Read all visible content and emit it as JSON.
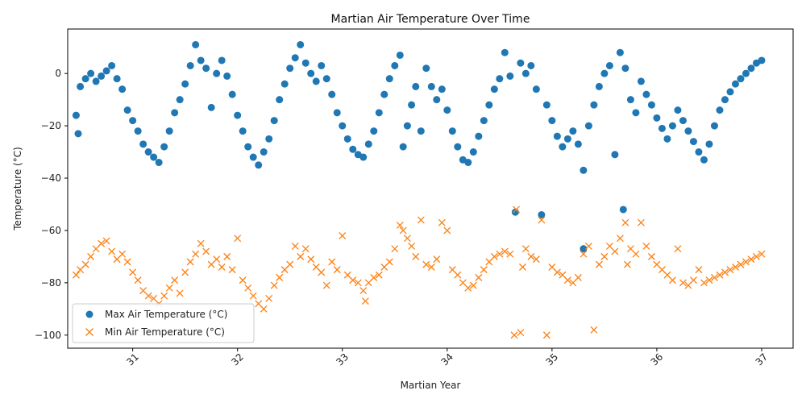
{
  "chart_data": {
    "type": "scatter",
    "title": "Martian Air Temperature Over Time",
    "xlabel": "Martian Year",
    "ylabel": "Temperature (°C)",
    "xlim": [
      30.38,
      37.3
    ],
    "ylim": [
      -105,
      17
    ],
    "xticks": [
      31,
      32,
      33,
      34,
      35,
      36,
      37
    ],
    "xtick_labels": [
      "31",
      "32",
      "33",
      "34",
      "35",
      "36",
      "37"
    ],
    "yticks": [
      -100,
      -80,
      -60,
      -40,
      -20,
      0
    ],
    "ytick_labels": [
      "−100",
      "−80",
      "−60",
      "−40",
      "−20",
      "0"
    ],
    "grid": false,
    "legend_position": "bottom-left",
    "colors": {
      "max": "#1f77b4",
      "min": "#ff7f0e"
    },
    "series": [
      {
        "name": "Max Air Temperature (°C)",
        "marker": "circle",
        "points": [
          [
            30.46,
            -16
          ],
          [
            30.48,
            -23
          ],
          [
            30.5,
            -5
          ],
          [
            30.55,
            -2
          ],
          [
            30.6,
            0
          ],
          [
            30.65,
            -3
          ],
          [
            30.7,
            -1
          ],
          [
            30.75,
            1
          ],
          [
            30.8,
            3
          ],
          [
            30.85,
            -2
          ],
          [
            30.9,
            -6
          ],
          [
            30.95,
            -14
          ],
          [
            31.0,
            -18
          ],
          [
            31.05,
            -22
          ],
          [
            31.1,
            -27
          ],
          [
            31.15,
            -30
          ],
          [
            31.2,
            -32
          ],
          [
            31.25,
            -34
          ],
          [
            31.3,
            -28
          ],
          [
            31.35,
            -22
          ],
          [
            31.4,
            -15
          ],
          [
            31.45,
            -10
          ],
          [
            31.5,
            -4
          ],
          [
            31.55,
            3
          ],
          [
            31.6,
            11
          ],
          [
            31.65,
            5
          ],
          [
            31.7,
            2
          ],
          [
            31.75,
            -13
          ],
          [
            31.8,
            0
          ],
          [
            31.85,
            5
          ],
          [
            31.9,
            -1
          ],
          [
            31.95,
            -8
          ],
          [
            32.0,
            -16
          ],
          [
            32.05,
            -22
          ],
          [
            32.1,
            -28
          ],
          [
            32.15,
            -32
          ],
          [
            32.2,
            -35
          ],
          [
            32.25,
            -30
          ],
          [
            32.3,
            -25
          ],
          [
            32.35,
            -18
          ],
          [
            32.4,
            -10
          ],
          [
            32.45,
            -4
          ],
          [
            32.5,
            2
          ],
          [
            32.55,
            6
          ],
          [
            32.6,
            11
          ],
          [
            32.65,
            4
          ],
          [
            32.7,
            0
          ],
          [
            32.75,
            -3
          ],
          [
            32.8,
            3
          ],
          [
            32.85,
            -2
          ],
          [
            32.9,
            -8
          ],
          [
            32.95,
            -15
          ],
          [
            33.0,
            -20
          ],
          [
            33.05,
            -25
          ],
          [
            33.1,
            -29
          ],
          [
            33.15,
            -31
          ],
          [
            33.2,
            -32
          ],
          [
            33.25,
            -27
          ],
          [
            33.3,
            -22
          ],
          [
            33.35,
            -15
          ],
          [
            33.4,
            -8
          ],
          [
            33.45,
            -2
          ],
          [
            33.5,
            3
          ],
          [
            33.55,
            7
          ],
          [
            33.58,
            -28
          ],
          [
            33.62,
            -20
          ],
          [
            33.66,
            -12
          ],
          [
            33.7,
            -5
          ],
          [
            33.75,
            -22
          ],
          [
            33.8,
            2
          ],
          [
            33.85,
            -5
          ],
          [
            33.9,
            -10
          ],
          [
            33.95,
            -6
          ],
          [
            34.0,
            -14
          ],
          [
            34.05,
            -22
          ],
          [
            34.1,
            -28
          ],
          [
            34.15,
            -33
          ],
          [
            34.2,
            -34
          ],
          [
            34.25,
            -30
          ],
          [
            34.3,
            -24
          ],
          [
            34.35,
            -18
          ],
          [
            34.4,
            -12
          ],
          [
            34.45,
            -6
          ],
          [
            34.5,
            -2
          ],
          [
            34.55,
            8
          ],
          [
            34.6,
            -1
          ],
          [
            34.65,
            -53
          ],
          [
            34.7,
            4
          ],
          [
            34.75,
            0
          ],
          [
            34.8,
            3
          ],
          [
            34.85,
            -6
          ],
          [
            34.9,
            -54
          ],
          [
            34.95,
            -12
          ],
          [
            35.0,
            -18
          ],
          [
            35.05,
            -24
          ],
          [
            35.1,
            -28
          ],
          [
            35.15,
            -25
          ],
          [
            35.2,
            -22
          ],
          [
            35.25,
            -27
          ],
          [
            35.3,
            -37
          ],
          [
            35.3,
            -67
          ],
          [
            35.35,
            -20
          ],
          [
            35.4,
            -12
          ],
          [
            35.45,
            -5
          ],
          [
            35.5,
            0
          ],
          [
            35.55,
            3
          ],
          [
            35.6,
            -31
          ],
          [
            35.65,
            8
          ],
          [
            35.68,
            -52
          ],
          [
            35.7,
            2
          ],
          [
            35.75,
            -10
          ],
          [
            35.8,
            -15
          ],
          [
            35.85,
            -3
          ],
          [
            35.9,
            -8
          ],
          [
            35.95,
            -12
          ],
          [
            36.0,
            -17
          ],
          [
            36.05,
            -21
          ],
          [
            36.1,
            -25
          ],
          [
            36.15,
            -20
          ],
          [
            36.2,
            -14
          ],
          [
            36.25,
            -18
          ],
          [
            36.3,
            -22
          ],
          [
            36.35,
            -26
          ],
          [
            36.4,
            -30
          ],
          [
            36.45,
            -33
          ],
          [
            36.5,
            -27
          ],
          [
            36.55,
            -20
          ],
          [
            36.6,
            -14
          ],
          [
            36.65,
            -10
          ],
          [
            36.7,
            -7
          ],
          [
            36.75,
            -4
          ],
          [
            36.8,
            -2
          ],
          [
            36.85,
            0
          ],
          [
            36.9,
            2
          ],
          [
            36.95,
            4
          ],
          [
            37.0,
            5
          ]
        ]
      },
      {
        "name": "Min Air Temperature (°C)",
        "marker": "x",
        "points": [
          [
            30.46,
            -77
          ],
          [
            30.5,
            -75
          ],
          [
            30.55,
            -73
          ],
          [
            30.6,
            -70
          ],
          [
            30.65,
            -67
          ],
          [
            30.7,
            -65
          ],
          [
            30.75,
            -64
          ],
          [
            30.8,
            -68
          ],
          [
            30.85,
            -71
          ],
          [
            30.9,
            -69
          ],
          [
            30.95,
            -72
          ],
          [
            31.0,
            -76
          ],
          [
            31.05,
            -79
          ],
          [
            31.1,
            -83
          ],
          [
            31.15,
            -85
          ],
          [
            31.2,
            -86
          ],
          [
            31.25,
            -88
          ],
          [
            31.3,
            -85
          ],
          [
            31.35,
            -82
          ],
          [
            31.4,
            -79
          ],
          [
            31.45,
            -84
          ],
          [
            31.5,
            -76
          ],
          [
            31.55,
            -72
          ],
          [
            31.6,
            -69
          ],
          [
            31.65,
            -65
          ],
          [
            31.7,
            -68
          ],
          [
            31.75,
            -73
          ],
          [
            31.8,
            -71
          ],
          [
            31.85,
            -74
          ],
          [
            31.9,
            -70
          ],
          [
            31.95,
            -75
          ],
          [
            32.0,
            -63
          ],
          [
            32.05,
            -79
          ],
          [
            32.1,
            -82
          ],
          [
            32.15,
            -85
          ],
          [
            32.2,
            -88
          ],
          [
            32.25,
            -90
          ],
          [
            32.3,
            -86
          ],
          [
            32.35,
            -81
          ],
          [
            32.4,
            -78
          ],
          [
            32.45,
            -75
          ],
          [
            32.5,
            -73
          ],
          [
            32.55,
            -66
          ],
          [
            32.6,
            -70
          ],
          [
            32.65,
            -67
          ],
          [
            32.7,
            -71
          ],
          [
            32.75,
            -74
          ],
          [
            32.8,
            -76
          ],
          [
            32.85,
            -81
          ],
          [
            32.9,
            -72
          ],
          [
            32.95,
            -75
          ],
          [
            33.0,
            -62
          ],
          [
            33.05,
            -77
          ],
          [
            33.1,
            -79
          ],
          [
            33.15,
            -80
          ],
          [
            33.2,
            -83
          ],
          [
            33.22,
            -87
          ],
          [
            33.25,
            -80
          ],
          [
            33.3,
            -78
          ],
          [
            33.35,
            -77
          ],
          [
            33.4,
            -74
          ],
          [
            33.45,
            -72
          ],
          [
            33.5,
            -67
          ],
          [
            33.55,
            -58
          ],
          [
            33.58,
            -60
          ],
          [
            33.62,
            -63
          ],
          [
            33.66,
            -66
          ],
          [
            33.7,
            -70
          ],
          [
            33.75,
            -56
          ],
          [
            33.8,
            -73
          ],
          [
            33.85,
            -74
          ],
          [
            33.9,
            -71
          ],
          [
            33.95,
            -57
          ],
          [
            34.0,
            -60
          ],
          [
            34.05,
            -75
          ],
          [
            34.1,
            -77
          ],
          [
            34.15,
            -80
          ],
          [
            34.2,
            -82
          ],
          [
            34.25,
            -81
          ],
          [
            34.3,
            -78
          ],
          [
            34.35,
            -75
          ],
          [
            34.4,
            -72
          ],
          [
            34.45,
            -70
          ],
          [
            34.5,
            -69
          ],
          [
            34.55,
            -68
          ],
          [
            34.6,
            -69
          ],
          [
            34.64,
            -100
          ],
          [
            34.66,
            -52
          ],
          [
            34.7,
            -99
          ],
          [
            34.72,
            -74
          ],
          [
            34.75,
            -67
          ],
          [
            34.8,
            -70
          ],
          [
            34.85,
            -71
          ],
          [
            34.9,
            -56
          ],
          [
            34.95,
            -100
          ],
          [
            35.0,
            -74
          ],
          [
            35.05,
            -76
          ],
          [
            35.1,
            -77
          ],
          [
            35.15,
            -79
          ],
          [
            35.2,
            -80
          ],
          [
            35.25,
            -78
          ],
          [
            35.3,
            -69
          ],
          [
            35.35,
            -66
          ],
          [
            35.4,
            -98
          ],
          [
            35.45,
            -73
          ],
          [
            35.5,
            -70
          ],
          [
            35.55,
            -66
          ],
          [
            35.6,
            -68
          ],
          [
            35.65,
            -63
          ],
          [
            35.7,
            -57
          ],
          [
            35.72,
            -73
          ],
          [
            35.75,
            -67
          ],
          [
            35.8,
            -69
          ],
          [
            35.85,
            -57
          ],
          [
            35.9,
            -66
          ],
          [
            35.95,
            -70
          ],
          [
            36.0,
            -73
          ],
          [
            36.05,
            -75
          ],
          [
            36.1,
            -77
          ],
          [
            36.15,
            -79
          ],
          [
            36.2,
            -67
          ],
          [
            36.25,
            -80
          ],
          [
            36.3,
            -81
          ],
          [
            36.35,
            -79
          ],
          [
            36.4,
            -75
          ],
          [
            36.45,
            -80
          ],
          [
            36.5,
            -79
          ],
          [
            36.55,
            -78
          ],
          [
            36.6,
            -77
          ],
          [
            36.65,
            -76
          ],
          [
            36.7,
            -75
          ],
          [
            36.75,
            -74
          ],
          [
            36.8,
            -73
          ],
          [
            36.85,
            -72
          ],
          [
            36.9,
            -71
          ],
          [
            36.95,
            -70
          ],
          [
            37.0,
            -69
          ]
        ]
      }
    ]
  }
}
